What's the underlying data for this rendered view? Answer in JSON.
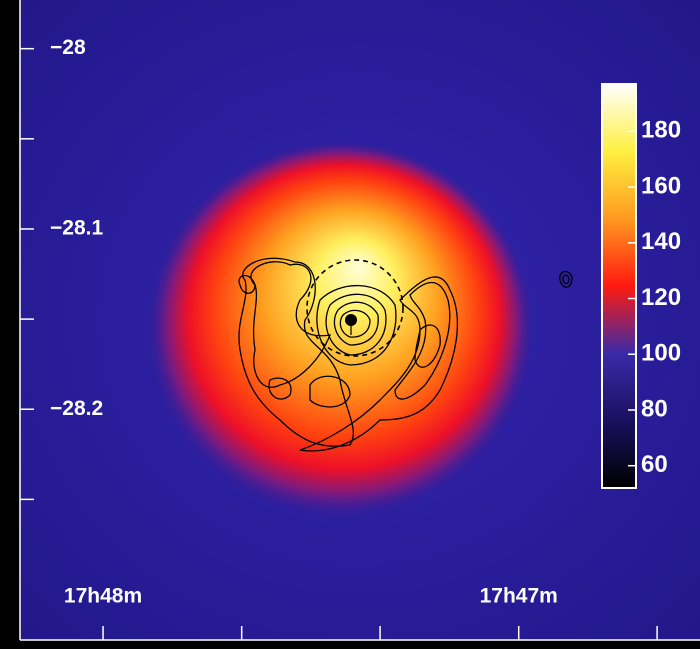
{
  "chart_data": {
    "type": "image",
    "xlim": [
      17.80333,
      17.77606
    ],
    "ylim": [
      -27.973,
      -28.328
    ],
    "xticks": [
      {
        "value": 17.8,
        "label": "17h48m"
      },
      {
        "value": 17.78333,
        "label": "17h47m"
      }
    ],
    "xminor": [
      17.79444,
      17.78889,
      17.77778
    ],
    "yticks": [
      {
        "value": -28,
        "label": "−28"
      },
      {
        "value": -28.1,
        "label": "−28.1"
      },
      {
        "value": -28.2,
        "label": "−28.2"
      }
    ],
    "yminor": [
      -28.05,
      -28.15,
      -28.25
    ],
    "clim": [
      52,
      197
    ],
    "cticks": [
      60,
      80,
      100,
      120,
      140,
      160,
      180
    ],
    "colorbar_colors": [
      "#000000",
      "#1a1060",
      "#3a2aa8",
      "#ff1a10",
      "#ff9a20",
      "#fff040",
      "#ffffff"
    ]
  }
}
